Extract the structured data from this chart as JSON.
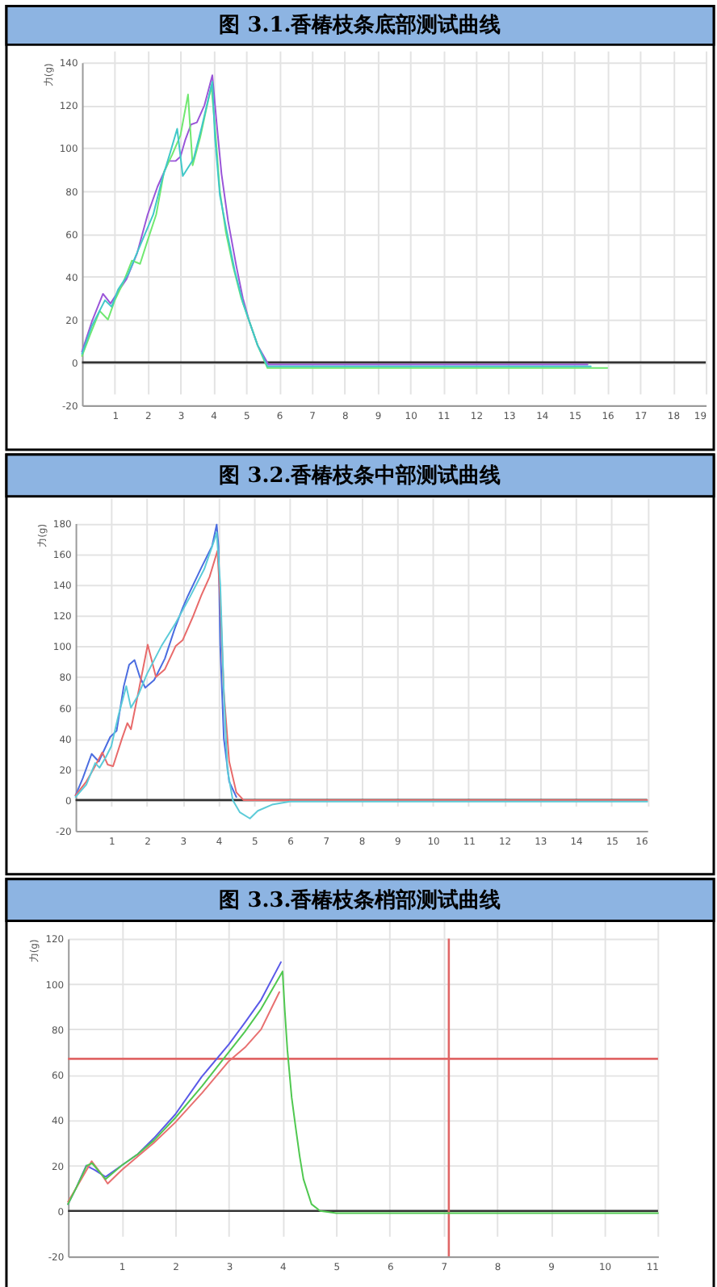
{
  "chart_data": [
    {
      "type": "line",
      "title": "图 3.1.香椿枝条底部测试曲线",
      "ylabel": "力(g)",
      "xlim": [
        0,
        19
      ],
      "xticks": [
        1,
        2,
        3,
        4,
        5,
        6,
        7,
        8,
        9,
        10,
        11,
        12,
        13,
        14,
        15,
        16,
        17,
        18,
        19
      ],
      "ylim": [
        -20,
        140
      ],
      "yticks": [
        -20,
        0,
        20,
        40,
        60,
        80,
        100,
        120,
        140
      ],
      "grid": true,
      "ref_lines": [
        {
          "axis": "y",
          "value": 0,
          "color": "#333333"
        }
      ],
      "series": [
        {
          "color": "#9a55d8",
          "x": [
            0,
            0.3,
            0.64,
            0.87,
            1.1,
            1.36,
            1.68,
            2.0,
            2.3,
            2.65,
            2.85,
            3.0,
            3.15,
            3.32,
            3.5,
            3.73,
            3.97,
            4.1,
            4.25,
            4.45,
            4.7,
            4.9,
            5.1,
            5.35,
            5.68,
            8,
            12,
            15.4
          ],
          "values": [
            5,
            19,
            32,
            27.5,
            33,
            39,
            51,
            69,
            82,
            94,
            94,
            96,
            104,
            111,
            112,
            120,
            134,
            112,
            88,
            66,
            45,
            30,
            19,
            8,
            -1,
            -1,
            -1,
            -1
          ]
        },
        {
          "color": "#70e870",
          "x": [
            0,
            0.25,
            0.54,
            0.79,
            1.0,
            1.25,
            1.52,
            1.77,
            2.0,
            2.26,
            2.5,
            2.75,
            3.0,
            3.23,
            3.37,
            3.6,
            3.94,
            4.05,
            4.2,
            4.38,
            4.6,
            4.85,
            5.1,
            5.35,
            5.65,
            8,
            12,
            16
          ],
          "values": [
            3,
            13,
            24,
            20,
            29,
            37,
            47.5,
            46,
            57,
            69,
            89,
            97,
            106,
            125,
            92,
            105,
            129,
            110,
            80,
            61,
            45,
            30,
            19,
            8,
            -2.6,
            -2.6,
            -2.6,
            -2.6
          ]
        },
        {
          "color": "#40c8c8",
          "x": [
            0,
            0.3,
            0.7,
            0.9,
            1.1,
            1.4,
            1.7,
            2.17,
            2.45,
            2.67,
            2.9,
            3.07,
            3.4,
            3.65,
            3.97,
            4.05,
            4.2,
            4.4,
            4.65,
            4.9,
            5.1,
            5.35,
            5.65,
            8,
            12,
            15.5
          ],
          "values": [
            4,
            17,
            29,
            26,
            34,
            41,
            52,
            69,
            86,
            97,
            109,
            87,
            95,
            110,
            131,
            105,
            78,
            62,
            43,
            28,
            19,
            8,
            -1.8,
            -1.8,
            -1.8,
            -1.8
          ]
        }
      ]
    },
    {
      "type": "line",
      "title": "图 3.2.香椿枝条中部测试曲线",
      "ylabel": "力(g)",
      "xlim": [
        0,
        16
      ],
      "xticks": [
        1,
        2,
        3,
        4,
        5,
        6,
        7,
        8,
        9,
        10,
        11,
        12,
        13,
        14,
        15,
        16
      ],
      "ylim": [
        -20,
        180
      ],
      "yticks": [
        -20,
        0,
        20,
        40,
        60,
        80,
        100,
        120,
        140,
        160,
        180
      ],
      "grid": true,
      "ref_lines": [
        {
          "axis": "y",
          "value": 0,
          "color": "#333333"
        }
      ],
      "series": [
        {
          "color": "#4a6ce0",
          "x": [
            0,
            0.2,
            0.45,
            0.65,
            0.97,
            1.15,
            1.35,
            1.5,
            1.65,
            1.8,
            1.95,
            2.2,
            2.5,
            2.77,
            3.0,
            3.15,
            3.52,
            3.82,
            3.95,
            4.0,
            4.05,
            4.15,
            4.3,
            4.5
          ],
          "values": [
            3,
            14,
            30,
            25,
            41,
            45,
            74,
            88,
            91,
            80,
            73,
            78,
            92,
            111,
            125,
            133,
            151,
            165,
            179,
            165,
            100,
            40,
            12,
            2
          ]
        },
        {
          "color": "#e86a6a",
          "x": [
            0,
            0.3,
            0.5,
            0.75,
            0.9,
            1.05,
            1.3,
            1.45,
            1.55,
            1.8,
            2.02,
            2.25,
            2.5,
            2.8,
            3.0,
            3.3,
            3.52,
            3.75,
            3.97,
            4.05,
            4.15,
            4.3,
            4.5,
            4.7,
            8,
            12,
            16
          ],
          "values": [
            3,
            12,
            20,
            31,
            23,
            22,
            40,
            50,
            46,
            75,
            101,
            80,
            85,
            100,
            104,
            120,
            133,
            145,
            162,
            130,
            70,
            25,
            5,
            0,
            0,
            0,
            0
          ]
        },
        {
          "color": "#5ccbd8",
          "x": [
            0,
            0.3,
            0.55,
            0.67,
            0.85,
            1.0,
            1.2,
            1.42,
            1.55,
            1.75,
            2.0,
            2.4,
            2.8,
            3.2,
            3.6,
            3.9,
            3.95,
            4.05,
            4.15,
            4.25,
            4.4,
            4.6,
            4.88,
            5.1,
            5.5,
            6,
            10,
            16
          ],
          "values": [
            2,
            10,
            24,
            21,
            28,
            35,
            55,
            74,
            60,
            68,
            82,
            100,
            115,
            132,
            150,
            170,
            174,
            140,
            70,
            20,
            0,
            -8,
            -12,
            -7,
            -3,
            -1,
            -1,
            -1
          ]
        }
      ]
    },
    {
      "type": "line",
      "title": "图 3.3.香椿枝条梢部测试曲线",
      "ylabel": "力(g)",
      "xlim": [
        0,
        11
      ],
      "xticks": [
        1,
        2,
        3,
        4,
        5,
        6,
        7,
        8,
        9,
        10,
        11
      ],
      "ylim": [
        -20,
        120
      ],
      "yticks": [
        -20,
        0,
        20,
        40,
        60,
        80,
        100,
        120
      ],
      "grid": true,
      "ref_lines": [
        {
          "axis": "y",
          "value": 0,
          "color": "#333333"
        },
        {
          "axis": "y",
          "value": 67,
          "color": "#e06666"
        },
        {
          "axis": "x",
          "value": 7.1,
          "color": "#e06666"
        }
      ],
      "series": [
        {
          "color": "#5a5ae8",
          "x": [
            0,
            0.15,
            0.34,
            0.5,
            0.7,
            1.0,
            1.3,
            1.6,
            2.0,
            2.49,
            3.0,
            3.3,
            3.6,
            3.97
          ],
          "values": [
            3,
            10,
            20,
            18,
            15,
            20,
            25,
            32,
            42.5,
            59,
            73.4,
            83,
            93,
            109.6
          ]
        },
        {
          "color": "#e87070",
          "x": [
            0,
            0.2,
            0.44,
            0.6,
            0.74,
            1.0,
            1.3,
            1.6,
            2.0,
            2.5,
            3.0,
            3.3,
            3.6,
            3.94
          ],
          "values": [
            4,
            12,
            21.9,
            17,
            12,
            18,
            24,
            30,
            39,
            52,
            66,
            72,
            80,
            96.4
          ]
        },
        {
          "color": "#50c850",
          "x": [
            0,
            0.15,
            0.35,
            0.45,
            0.7,
            1.0,
            1.3,
            1.6,
            2.0,
            2.5,
            3.0,
            3.3,
            3.6,
            4.0,
            4.04,
            4.09,
            4.17,
            4.24,
            4.32,
            4.39,
            4.54,
            4.7,
            5,
            8,
            11
          ],
          "values": [
            3,
            10,
            20,
            21,
            14,
            20,
            25,
            31,
            41,
            55,
            70,
            79,
            89,
            105.5,
            89,
            71,
            50,
            37.6,
            24,
            14,
            3,
            0,
            -1,
            -1,
            -1
          ]
        }
      ]
    }
  ]
}
